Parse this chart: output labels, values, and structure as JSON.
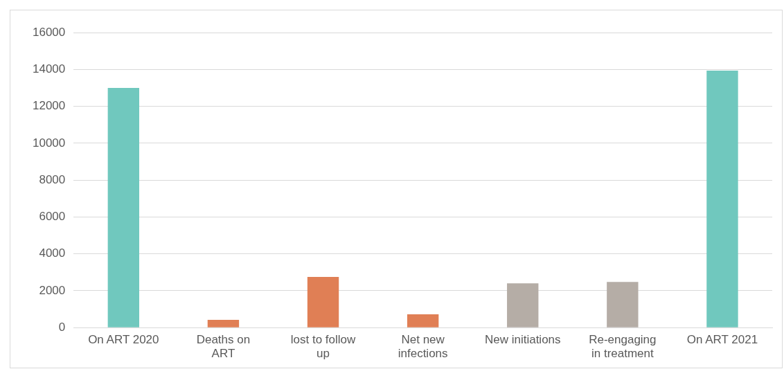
{
  "chart_data": {
    "type": "bar",
    "categories": [
      "On ART 2020",
      "Deaths on ART",
      "lost to follow up",
      "Net new infections",
      "New initiations",
      "Re-engaging in treatment",
      "On ART 2021"
    ],
    "values": [
      13000,
      420,
      2750,
      720,
      2400,
      2480,
      13940
    ],
    "colors": [
      "#70c8be",
      "#e07f55",
      "#e07f55",
      "#e07f55",
      "#b5ada6",
      "#b5ada6",
      "#70c8be"
    ],
    "ylim": [
      0,
      16000
    ],
    "yticks": [
      0,
      2000,
      4000,
      6000,
      8000,
      10000,
      12000,
      14000,
      16000
    ],
    "grid": "y"
  }
}
